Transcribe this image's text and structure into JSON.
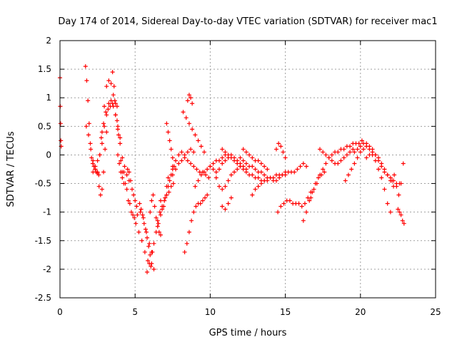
{
  "chart_data": {
    "type": "scatter",
    "title": "Day 174 of 2014, Sidereal Day-to-day VTEC variation (SDTVAR) for receiver mac1",
    "xlabel": "GPS time / hours",
    "ylabel": "SDTVAR / TECUs",
    "xlim": [
      0,
      25
    ],
    "ylim": [
      -2.5,
      2
    ],
    "xticks": [
      0,
      5,
      10,
      15,
      20,
      25
    ],
    "yticks": [
      -2.5,
      -2,
      -1.5,
      -1,
      -0.5,
      0,
      0.5,
      1,
      1.5,
      2
    ],
    "xtick_labels": [
      "0",
      "5",
      "10",
      "15",
      "20",
      "25"
    ],
    "ytick_labels": [
      "-2.5",
      "-2",
      "-1.5",
      "-1",
      "-0.5",
      "0",
      "0.5",
      "1",
      "1.5",
      "2"
    ],
    "grid": true,
    "marker": "+",
    "marker_color": "#ff0000",
    "series": [
      {
        "name": "t0",
        "x": [
          0.0,
          0.02,
          0.04,
          0.06,
          0.08
        ],
        "y": [
          1.35,
          0.85,
          0.55,
          0.25,
          0.15
        ]
      },
      {
        "name": "a1",
        "x": [
          1.7,
          1.78,
          1.86,
          1.94,
          2.02,
          2.1,
          2.18,
          2.26,
          2.34,
          2.42,
          2.5,
          2.58
        ],
        "y": [
          1.55,
          1.3,
          0.95,
          0.55,
          0.2,
          -0.05,
          -0.15,
          -0.2,
          -0.25,
          -0.3,
          -0.32,
          -0.35
        ]
      },
      {
        "name": "a2",
        "x": [
          1.75,
          1.9,
          2.05,
          2.2,
          2.35,
          2.5,
          2.65,
          2.8,
          2.95,
          3.1,
          3.25,
          3.4,
          3.55
        ],
        "y": [
          0.5,
          0.35,
          0.1,
          -0.1,
          -0.25,
          -0.3,
          0.0,
          0.4,
          0.85,
          1.2,
          1.3,
          1.25,
          1.05
        ]
      },
      {
        "name": "a3",
        "x": [
          2.2,
          2.35,
          2.5,
          2.65,
          2.8,
          2.95,
          3.1,
          3.25,
          3.4,
          3.55,
          3.7,
          3.85,
          4.0
        ],
        "y": [
          -0.3,
          -0.2,
          -0.1,
          0.0,
          0.2,
          0.5,
          0.7,
          0.9,
          0.95,
          0.85,
          0.7,
          0.5,
          0.3
        ]
      },
      {
        "name": "a4",
        "x": [
          2.6,
          2.7,
          2.8,
          2.9,
          3.0,
          3.1
        ],
        "y": [
          -0.55,
          -0.7,
          -0.6,
          -0.3,
          0.1,
          0.4
        ]
      },
      {
        "name": "a5",
        "x": [
          2.75,
          2.9,
          3.05,
          3.2,
          3.35,
          3.5,
          3.65,
          3.8
        ],
        "y": [
          0.3,
          0.55,
          0.75,
          0.8,
          0.85,
          0.9,
          0.95,
          0.85
        ]
      },
      {
        "name": "a6",
        "x": [
          3.5,
          3.6,
          3.7,
          3.8,
          3.9
        ],
        "y": [
          1.45,
          1.2,
          0.9,
          0.6,
          0.35
        ]
      },
      {
        "name": "a7",
        "x": [
          3.7,
          3.85,
          4.0,
          4.15,
          4.3,
          4.45,
          4.6
        ],
        "y": [
          0.7,
          0.45,
          0.2,
          -0.05,
          -0.2,
          -0.35,
          -0.45
        ]
      },
      {
        "name": "a8",
        "x": [
          3.85,
          3.95,
          4.05,
          4.15,
          4.25
        ],
        "y": [
          0.0,
          -0.15,
          -0.3,
          -0.4,
          -0.5
        ]
      },
      {
        "name": "a9",
        "x": [
          4.05,
          4.25,
          4.45,
          4.65,
          4.85,
          5.05,
          5.25,
          5.45,
          5.65,
          5.85,
          6.05,
          6.25
        ],
        "y": [
          -0.1,
          -0.3,
          -0.6,
          -0.85,
          -1.05,
          -1.2,
          -1.35,
          -1.5,
          -1.7,
          -1.85,
          -1.95,
          -2.0
        ]
      },
      {
        "name": "a10",
        "x": [
          4.15,
          4.35,
          4.55,
          4.75,
          4.95,
          5.15,
          5.35,
          5.55,
          5.75,
          5.95,
          6.15
        ],
        "y": [
          -0.3,
          -0.5,
          -0.8,
          -1.0,
          -1.1,
          -1.05,
          -1.0,
          -1.1,
          -1.35,
          -1.55,
          -1.7
        ]
      },
      {
        "name": "a11",
        "x": [
          4.5,
          4.6,
          4.7,
          4.8,
          4.9,
          5.0,
          5.1
        ],
        "y": [
          -0.25,
          -0.3,
          -0.45,
          -0.6,
          -0.7,
          -0.8,
          -0.9
        ]
      },
      {
        "name": "a12",
        "x": [
          5.3,
          5.4,
          5.5,
          5.6,
          5.7,
          5.8,
          5.9,
          6.0,
          6.1
        ],
        "y": [
          -0.85,
          -0.95,
          -1.05,
          -1.2,
          -1.3,
          -1.45,
          -1.6,
          -1.75,
          -1.9
        ]
      },
      {
        "name": "a13",
        "x": [
          5.8,
          5.95,
          6.1,
          6.25,
          6.4,
          6.55,
          6.7
        ],
        "y": [
          -2.05,
          -1.9,
          -1.7,
          -1.55,
          -1.35,
          -1.2,
          -1.05
        ]
      },
      {
        "name": "a14",
        "x": [
          6.0,
          6.1,
          6.2,
          6.3,
          6.4,
          6.5,
          6.6,
          6.7
        ],
        "y": [
          -1.0,
          -0.8,
          -0.7,
          -0.9,
          -1.1,
          -1.25,
          -1.35,
          -1.4
        ]
      },
      {
        "name": "a15",
        "x": [
          6.5,
          6.65,
          6.8,
          6.95,
          7.1,
          7.25,
          7.4,
          7.55
        ],
        "y": [
          -1.15,
          -1.0,
          -0.9,
          -0.8,
          -0.7,
          -0.65,
          -0.55,
          -0.5
        ]
      },
      {
        "name": "a16",
        "x": [
          6.7,
          6.8,
          6.9,
          7.0,
          7.1,
          7.2
        ],
        "y": [
          -0.8,
          -0.95,
          -0.9,
          -0.75,
          -0.55,
          -0.4
        ]
      },
      {
        "name": "a17",
        "x": [
          7.1,
          7.2,
          7.3,
          7.4,
          7.5,
          7.6
        ],
        "y": [
          0.55,
          0.4,
          0.25,
          0.1,
          -0.05,
          -0.2
        ]
      },
      {
        "name": "a18",
        "x": [
          7.1,
          7.2,
          7.3,
          7.4,
          7.5
        ],
        "y": [
          -0.7,
          -0.55,
          -0.45,
          -0.35,
          -0.25
        ]
      },
      {
        "name": "a19",
        "x": [
          7.5,
          7.7,
          7.9,
          8.1,
          8.3,
          8.5,
          8.7,
          8.9,
          9.1,
          9.3,
          9.5,
          9.7,
          9.9
        ],
        "y": [
          -0.2,
          -0.1,
          0.0,
          0.05,
          0.0,
          -0.1,
          -0.15,
          -0.2,
          -0.25,
          -0.3,
          -0.3,
          -0.35,
          -0.4
        ]
      },
      {
        "name": "a20",
        "x": [
          7.5,
          7.7,
          7.9,
          8.1,
          8.3,
          8.5,
          8.7,
          8.9
        ],
        "y": [
          -0.35,
          -0.25,
          -0.15,
          -0.1,
          -0.05,
          0.05,
          0.1,
          0.05
        ]
      },
      {
        "name": "a21",
        "x": [
          8.2,
          8.4,
          8.6,
          8.8,
          9.0,
          9.2,
          9.4,
          9.6
        ],
        "y": [
          0.75,
          0.65,
          0.55,
          0.45,
          0.35,
          0.25,
          0.15,
          0.05
        ]
      },
      {
        "name": "a22",
        "x": [
          8.5,
          8.6,
          8.7,
          8.8
        ],
        "y": [
          0.95,
          1.05,
          1.0,
          0.9
        ]
      },
      {
        "name": "a23",
        "x": [
          8.3,
          8.45,
          8.6,
          8.75,
          8.9,
          9.05,
          9.2,
          9.35,
          9.5,
          9.65,
          9.8
        ],
        "y": [
          -1.7,
          -1.55,
          -1.35,
          -1.15,
          -1.0,
          -0.9,
          -0.85,
          -0.85,
          -0.8,
          -0.75,
          -0.7
        ]
      },
      {
        "name": "a24",
        "x": [
          9.0,
          9.2,
          9.4,
          9.6,
          9.8,
          10.0,
          10.2,
          10.4,
          10.6,
          10.8,
          11.0
        ],
        "y": [
          -0.55,
          -0.45,
          -0.35,
          -0.3,
          -0.25,
          -0.2,
          -0.15,
          -0.1,
          -0.1,
          -0.05,
          0.0
        ]
      },
      {
        "name": "a25",
        "x": [
          10.0,
          10.2,
          10.4,
          10.6,
          10.8,
          11.0,
          11.2,
          11.4,
          11.6,
          11.8,
          12.0,
          12.2,
          12.4
        ],
        "y": [
          -0.2,
          -0.25,
          -0.3,
          -0.25,
          -0.15,
          -0.1,
          -0.05,
          0.0,
          -0.05,
          -0.1,
          -0.15,
          -0.2,
          -0.25
        ]
      },
      {
        "name": "a26",
        "x": [
          10.4,
          10.6,
          10.8,
          11.0,
          11.2,
          11.4,
          11.6,
          11.8,
          12.0
        ],
        "y": [
          -0.4,
          -0.55,
          -0.6,
          -0.55,
          -0.45,
          -0.35,
          -0.3,
          -0.25,
          -0.2
        ]
      },
      {
        "name": "a27",
        "x": [
          10.8,
          11.0,
          11.2,
          11.4,
          11.6,
          11.8,
          12.0,
          12.2,
          12.4,
          12.6,
          12.8,
          13.0,
          13.2,
          13.4,
          13.6
        ],
        "y": [
          0.1,
          0.05,
          0.0,
          -0.05,
          -0.1,
          -0.15,
          -0.2,
          -0.25,
          -0.3,
          -0.35,
          -0.35,
          -0.4,
          -0.4,
          -0.45,
          -0.45
        ]
      },
      {
        "name": "a28",
        "x": [
          10.8,
          11.0,
          11.2,
          11.4
        ],
        "y": [
          -0.9,
          -0.95,
          -0.85,
          -0.75
        ]
      },
      {
        "name": "a29",
        "x": [
          12.0,
          12.2,
          12.4,
          12.6,
          12.8,
          13.0,
          13.2,
          13.4,
          13.6,
          13.8,
          14.0,
          14.2,
          14.4,
          14.6,
          14.8,
          15.0
        ],
        "y": [
          -0.05,
          -0.1,
          -0.15,
          -0.2,
          -0.2,
          -0.25,
          -0.3,
          -0.3,
          -0.35,
          -0.4,
          -0.4,
          -0.45,
          -0.45,
          -0.4,
          -0.35,
          -0.35
        ]
      },
      {
        "name": "a30",
        "x": [
          12.2,
          12.4,
          12.6,
          12.8,
          13.0,
          13.2,
          13.4,
          13.6,
          13.8
        ],
        "y": [
          0.1,
          0.05,
          0.0,
          -0.05,
          -0.1,
          -0.1,
          -0.15,
          -0.2,
          -0.25
        ]
      },
      {
        "name": "a31",
        "x": [
          12.8,
          13.0,
          13.2,
          13.4,
          13.6,
          13.8,
          14.0,
          14.2,
          14.4,
          14.6,
          14.8,
          15.0,
          15.2,
          15.4,
          15.6,
          15.8,
          16.0,
          16.2,
          16.4
        ],
        "y": [
          -0.7,
          -0.6,
          -0.55,
          -0.5,
          -0.45,
          -0.45,
          -0.4,
          -0.4,
          -0.35,
          -0.35,
          -0.35,
          -0.3,
          -0.3,
          -0.3,
          -0.3,
          -0.25,
          -0.2,
          -0.15,
          -0.2
        ]
      },
      {
        "name": "a32",
        "x": [
          14.4,
          14.55,
          14.7,
          14.85,
          15.0
        ],
        "y": [
          0.1,
          0.2,
          0.15,
          0.05,
          -0.05
        ]
      },
      {
        "name": "a33",
        "x": [
          14.5,
          14.7,
          14.9,
          15.1,
          15.3,
          15.5,
          15.7,
          15.9,
          16.1,
          16.3,
          16.5,
          16.7
        ],
        "y": [
          -1.0,
          -0.9,
          -0.85,
          -0.8,
          -0.8,
          -0.85,
          -0.85,
          -0.85,
          -0.9,
          -0.85,
          -0.75,
          -0.65
        ]
      },
      {
        "name": "a34",
        "x": [
          16.2,
          16.4,
          16.6,
          16.8,
          17.0,
          17.2,
          17.4,
          17.6
        ],
        "y": [
          -1.15,
          -1.0,
          -0.8,
          -0.65,
          -0.5,
          -0.4,
          -0.35,
          -0.3
        ]
      },
      {
        "name": "a35",
        "x": [
          16.7,
          16.9,
          17.1,
          17.3,
          17.5,
          17.7,
          17.9,
          18.1,
          18.3,
          18.5,
          18.7,
          18.9,
          19.1,
          19.3,
          19.5,
          19.7,
          19.9,
          20.1
        ],
        "y": [
          -0.75,
          -0.6,
          -0.5,
          -0.35,
          -0.25,
          -0.15,
          -0.05,
          0.0,
          0.05,
          0.05,
          0.1,
          0.1,
          0.15,
          0.15,
          0.2,
          0.2,
          0.2,
          0.25
        ]
      },
      {
        "name": "a36",
        "x": [
          17.3,
          17.5,
          17.7,
          17.9,
          18.1,
          18.3,
          18.5,
          18.7,
          18.9,
          19.1,
          19.3,
          19.5
        ],
        "y": [
          0.1,
          0.05,
          0.0,
          -0.05,
          -0.1,
          -0.15,
          -0.15,
          -0.1,
          -0.05,
          0.0,
          0.05,
          0.1
        ]
      },
      {
        "name": "a37",
        "x": [
          19.0,
          19.2,
          19.4,
          19.6,
          19.8,
          20.0,
          20.2,
          20.4,
          20.6,
          20.8,
          21.0,
          21.2,
          21.4,
          21.6,
          21.8,
          22.0
        ],
        "y": [
          -0.45,
          -0.35,
          -0.25,
          -0.15,
          -0.05,
          0.05,
          0.1,
          0.15,
          0.1,
          0.0,
          -0.1,
          -0.25,
          -0.4,
          -0.6,
          -0.85,
          -1.0
        ]
      },
      {
        "name": "a38",
        "x": [
          19.6,
          19.8,
          20.0,
          20.2,
          20.4,
          20.6,
          20.8,
          21.0,
          21.2,
          21.4,
          21.6,
          21.8,
          22.0,
          22.2,
          22.4,
          22.6
        ],
        "y": [
          0.05,
          0.1,
          0.15,
          0.2,
          0.2,
          0.15,
          0.1,
          0.0,
          -0.1,
          -0.2,
          -0.3,
          -0.35,
          -0.4,
          -0.45,
          -0.5,
          -0.5
        ]
      },
      {
        "name": "a39",
        "x": [
          20.4,
          20.6,
          20.8,
          21.0,
          21.2,
          21.4,
          21.6,
          21.8,
          22.0,
          22.2
        ],
        "y": [
          -0.05,
          0.0,
          0.05,
          0.0,
          -0.05,
          -0.15,
          -0.25,
          -0.35,
          -0.45,
          -0.55
        ]
      },
      {
        "name": "a40",
        "x": [
          22.1,
          22.25,
          22.4,
          22.55,
          22.7,
          22.85
        ],
        "y": [
          -0.45,
          -0.35,
          -0.55,
          -0.7,
          -0.5,
          -0.15
        ]
      },
      {
        "name": "a41",
        "x": [
          22.5,
          22.6,
          22.7,
          22.8,
          22.9
        ],
        "y": [
          -0.95,
          -1.0,
          -1.05,
          -1.15,
          -1.2
        ]
      }
    ]
  }
}
